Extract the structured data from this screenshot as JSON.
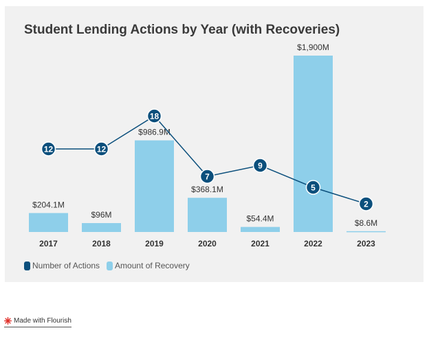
{
  "chart_data": {
    "type": "bar",
    "title": "Student Lending Actions by Year (with Recoveries)",
    "categories": [
      "2017",
      "2018",
      "2019",
      "2020",
      "2021",
      "2022",
      "2023"
    ],
    "series": [
      {
        "name": "Amount of Recovery",
        "type": "bar",
        "color": "#8ecfea",
        "values": [
          204.1,
          96,
          986.9,
          368.1,
          54.4,
          1900,
          8.6
        ],
        "labels": [
          "$204.1M",
          "$96M",
          "$986.9M",
          "$368.1M",
          "$54.4M",
          "$1,900M",
          "$8.6M"
        ]
      },
      {
        "name": "Number of Actions",
        "type": "line",
        "color": "#0b4f7c",
        "values": [
          12,
          12,
          18,
          7,
          9,
          5,
          2
        ]
      }
    ],
    "xlabel": "",
    "ylabel": "",
    "grid": false,
    "legend": "bottom-left"
  },
  "footer": {
    "text": "Made with Flourish",
    "icon": "flourish-logo-icon",
    "icon_color": "#e0302a"
  }
}
